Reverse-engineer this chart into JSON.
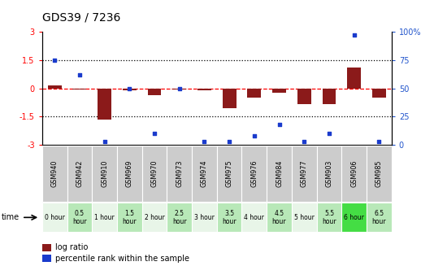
{
  "title": "GDS39 / 7236",
  "samples": [
    "GSM940",
    "GSM942",
    "GSM910",
    "GSM969",
    "GSM970",
    "GSM973",
    "GSM974",
    "GSM975",
    "GSM976",
    "GSM984",
    "GSM977",
    "GSM903",
    "GSM906",
    "GSM985"
  ],
  "time_labels": [
    "0 hour",
    "0.5\nhour",
    "1 hour",
    "1.5\nhour",
    "2 hour",
    "2.5\nhour",
    "3 hour",
    "3.5\nhour",
    "4 hour",
    "4.5\nhour",
    "5 hour",
    "5.5\nhour",
    "6 hour",
    "6.5\nhour"
  ],
  "log_ratio": [
    0.15,
    -0.05,
    -1.65,
    -0.08,
    -0.35,
    -0.05,
    -0.08,
    -1.05,
    -0.5,
    -0.22,
    -0.82,
    -0.82,
    1.1,
    -0.5
  ],
  "percentile": [
    75,
    62,
    3,
    50,
    10,
    50,
    3,
    3,
    8,
    18,
    3,
    10,
    97,
    3
  ],
  "bar_color": "#8b1a1a",
  "dot_color": "#1a3bcc",
  "ylim_left": [
    -3,
    3
  ],
  "ylim_right": [
    0,
    100
  ],
  "yticks_left": [
    -3,
    -1.5,
    0,
    1.5,
    3
  ],
  "yticks_right": [
    0,
    25,
    50,
    75,
    100
  ],
  "time_bg_colors": [
    "#e8f5e8",
    "#b8e8b8",
    "#e8f5e8",
    "#b8e8b8",
    "#e8f5e8",
    "#b8e8b8",
    "#e8f5e8",
    "#b8e8b8",
    "#e8f5e8",
    "#b8e8b8",
    "#e8f5e8",
    "#b8e8b8",
    "#44dd44",
    "#b8e8b8"
  ],
  "sample_bg_color": "#cccccc",
  "legend_log_ratio_label": "log ratio",
  "legend_percentile_label": "percentile rank within the sample",
  "right_axis_color": "#2255cc"
}
